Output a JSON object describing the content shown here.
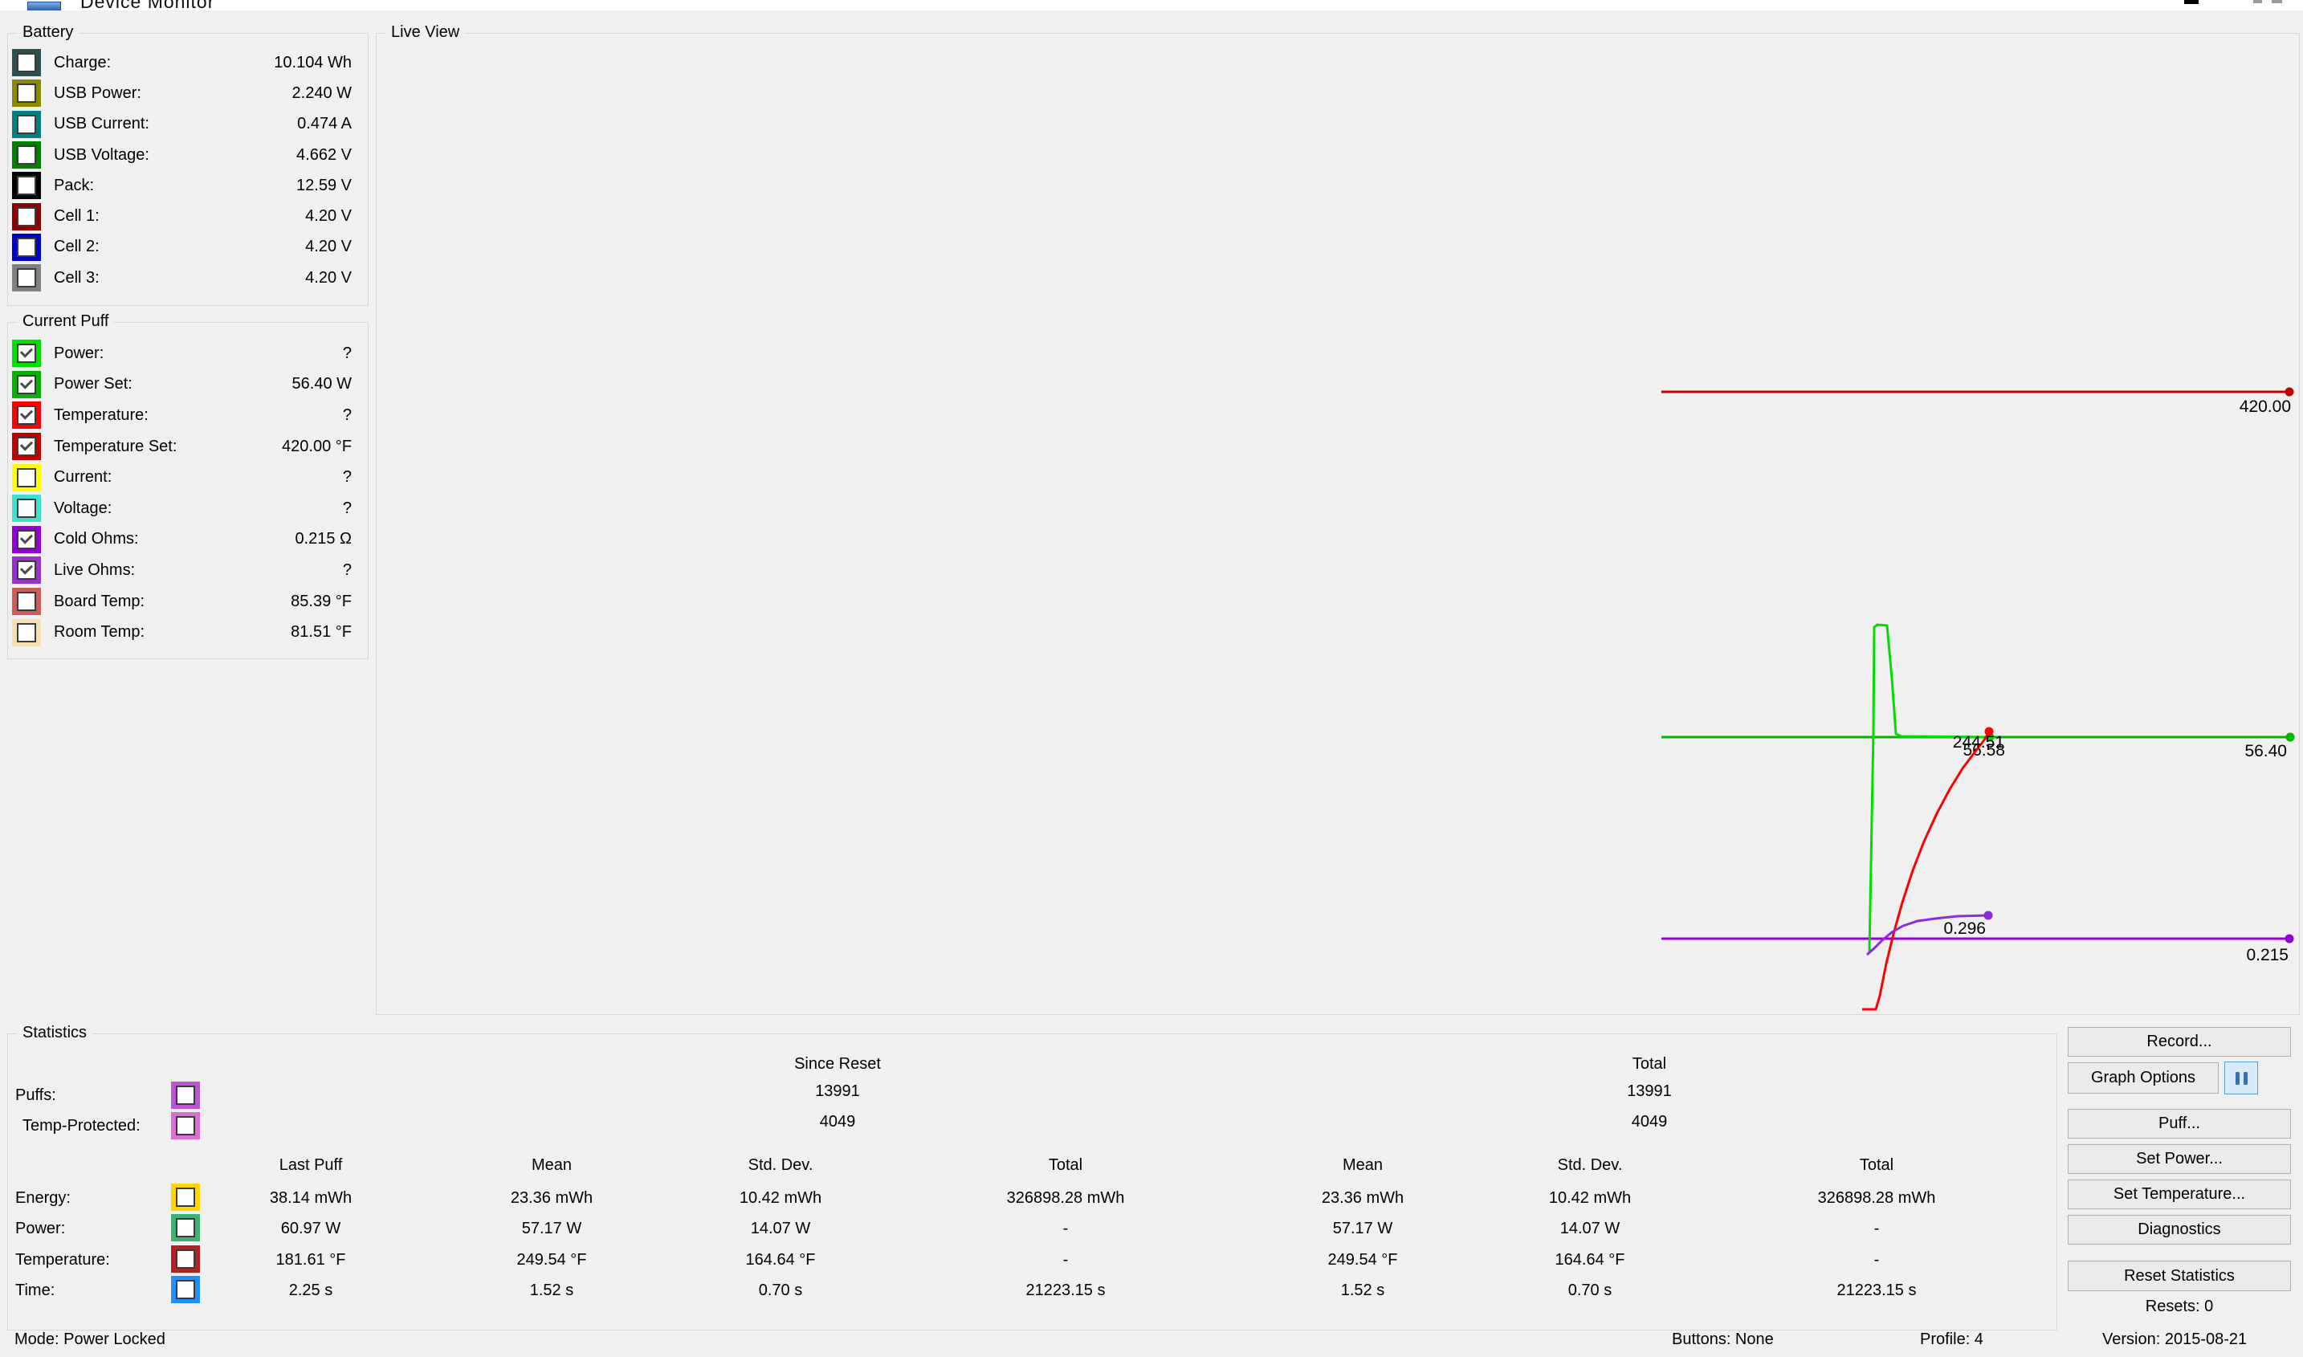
{
  "window": {
    "title": "Device Monitor"
  },
  "battery": {
    "title": "Battery",
    "items": [
      {
        "label": "Charge:",
        "value": "10.104 Wh",
        "color": "#2F4F4F",
        "checked": false
      },
      {
        "label": "USB Power:",
        "value": "2.240 W",
        "color": "#8B8B00",
        "checked": false
      },
      {
        "label": "USB Current:",
        "value": "0.474 A",
        "color": "#008080",
        "checked": false
      },
      {
        "label": "USB Voltage:",
        "value": "4.662 V",
        "color": "#008000",
        "checked": false
      },
      {
        "label": "Pack:",
        "value": "12.59 V",
        "color": "#000000",
        "checked": false
      },
      {
        "label": "Cell 1:",
        "value": "4.20 V",
        "color": "#8B0000",
        "checked": false
      },
      {
        "label": "Cell 2:",
        "value": "4.20 V",
        "color": "#0000CC",
        "checked": false
      },
      {
        "label": "Cell 3:",
        "value": "4.20 V",
        "color": "#808080",
        "checked": false
      }
    ]
  },
  "current_puff": {
    "title": "Current Puff",
    "items": [
      {
        "label": "Power:",
        "value": "?",
        "color": "#00E000",
        "checked": true
      },
      {
        "label": "Power Set:",
        "value": "56.40 W",
        "color": "#00B400",
        "checked": true
      },
      {
        "label": "Temperature:",
        "value": "?",
        "color": "#FF0000",
        "checked": true
      },
      {
        "label": "Temperature Set:",
        "value": "420.00 °F",
        "color": "#BE0000",
        "checked": true
      },
      {
        "label": "Current:",
        "value": "?",
        "color": "#FFFF00",
        "checked": false
      },
      {
        "label": "Voltage:",
        "value": "?",
        "color": "#40E0D0",
        "checked": false
      },
      {
        "label": "Cold Ohms:",
        "value": "0.215 Ω",
        "color": "#9400D3",
        "checked": true
      },
      {
        "label": "Live Ohms:",
        "value": "?",
        "color": "#9932CC",
        "checked": true
      },
      {
        "label": "Board Temp:",
        "value": "85.39 °F",
        "color": "#CD5C5C",
        "checked": false
      },
      {
        "label": "Room Temp:",
        "value": "81.51 °F",
        "color": "#F5DEB3",
        "checked": false
      }
    ]
  },
  "live_view": {
    "title": "Live View",
    "chart_data": {
      "type": "line",
      "grid": false,
      "x_axis": "time (unlabeled)",
      "current_values": {
        "temperature_set": 420.0,
        "power_set": 56.4,
        "cold_ohms": 0.215,
        "power": 56.58,
        "temperature": 244.51,
        "live_ohms": 0.296
      },
      "series": [
        {
          "id": "temperature-set",
          "name": "Temperature Set",
          "color": "#C00000",
          "points": [
            [
              2069,
              488
            ],
            [
              2851,
              488
            ]
          ],
          "dot": [
            2851,
            488
          ],
          "label": "420.00",
          "label_pos": [
            2853,
            513
          ]
        },
        {
          "id": "power-set",
          "name": "Power Set",
          "color": "#00B400",
          "points": [
            [
              2069,
              918
            ],
            [
              2852,
              918
            ]
          ],
          "dot": [
            2852,
            918
          ],
          "label": "56.40",
          "label_pos": [
            2848,
            942
          ]
        },
        {
          "id": "cold-ohms",
          "name": "Cold Ohms",
          "color": "#9400D3",
          "points": [
            [
              2069,
              1169
            ],
            [
              2851,
              1169
            ]
          ],
          "dot": [
            2851,
            1169
          ],
          "label": "0.215",
          "label_pos": [
            2850,
            1196
          ]
        },
        {
          "id": "power",
          "name": "Power",
          "color": "#00DC00",
          "points": [
            [
              2328,
              1187
            ],
            [
              2333,
              910
            ],
            [
              2334,
              781
            ],
            [
              2338,
              778
            ],
            [
              2350,
              779
            ],
            [
              2356,
              845
            ],
            [
              2361,
              914
            ],
            [
              2368,
              917
            ],
            [
              2477,
              918
            ]
          ],
          "dot": [
            2478,
            918
          ],
          "label": "56.58",
          "label_pos": [
            2497,
            941
          ]
        },
        {
          "id": "temperature",
          "name": "Temperature",
          "color": "#FF0000",
          "points": [
            [
              2319,
              1257
            ],
            [
              2336,
              1257
            ],
            [
              2341,
              1240
            ],
            [
              2349,
              1200
            ],
            [
              2358,
              1163
            ],
            [
              2369,
              1124
            ],
            [
              2382,
              1084
            ],
            [
              2396,
              1048
            ],
            [
              2412,
              1013
            ],
            [
              2428,
              983
            ],
            [
              2444,
              957
            ],
            [
              2459,
              937
            ],
            [
              2470,
              923
            ],
            [
              2477,
              912
            ]
          ],
          "dot": [
            2477,
            911
          ],
          "label": "244.51",
          "label_pos": [
            2496,
            931
          ]
        },
        {
          "id": "live-ohms",
          "name": "Live Ohms",
          "color": "#8A2BE2",
          "points": [
            [
              2325,
              1189
            ],
            [
              2334,
              1181
            ],
            [
              2344,
              1171
            ],
            [
              2356,
              1161
            ],
            [
              2370,
              1153
            ],
            [
              2388,
              1147
            ],
            [
              2410,
              1144
            ],
            [
              2438,
              1141
            ],
            [
              2476,
              1140
            ]
          ],
          "dot": [
            2476,
            1140
          ],
          "label": "0.296",
          "label_pos": [
            2473,
            1163
          ]
        }
      ]
    }
  },
  "statistics": {
    "title": "Statistics",
    "group_headers": {
      "since_reset": "Since Reset",
      "total": "Total"
    },
    "counters": [
      {
        "label": "Puffs:",
        "color": "#BA55D3",
        "checked": false,
        "since_reset": "13991",
        "total": "13991"
      },
      {
        "label": "Temp-Protected:",
        "color": "#DA70D6",
        "checked": false,
        "since_reset": "4049",
        "total": "4049"
      }
    ],
    "col_headers": [
      "Last Puff",
      "Mean",
      "Std. Dev.",
      "Total",
      "Mean",
      "Std. Dev.",
      "Total"
    ],
    "rows": [
      {
        "label": "Energy:",
        "color": "#FFD700",
        "checked": false,
        "values": [
          "38.14 mWh",
          "23.36 mWh",
          "10.42 mWh",
          "326898.28 mWh",
          "23.36 mWh",
          "10.42 mWh",
          "326898.28 mWh"
        ]
      },
      {
        "label": "Power:",
        "color": "#3CB371",
        "checked": false,
        "values": [
          "60.97 W",
          "57.17 W",
          "14.07 W",
          "-",
          "57.17 W",
          "14.07 W",
          "-"
        ]
      },
      {
        "label": "Temperature:",
        "color": "#B22222",
        "checked": false,
        "values": [
          "181.61 °F",
          "249.54 °F",
          "164.64 °F",
          "-",
          "249.54 °F",
          "164.64 °F",
          "-"
        ]
      },
      {
        "label": "Time:",
        "color": "#1E90FF",
        "checked": false,
        "values": [
          "2.25 s",
          "1.52 s",
          "0.70 s",
          "21223.15 s",
          "1.52 s",
          "0.70 s",
          "21223.15 s"
        ]
      }
    ]
  },
  "actions": {
    "record": "Record...",
    "graph_options": "Graph Options",
    "pause_icon": "pause",
    "puff": "Puff...",
    "set_power": "Set Power...",
    "set_temperature": "Set Temperature...",
    "diagnostics": "Diagnostics",
    "reset_statistics": "Reset Statistics",
    "resets": "Resets: 0"
  },
  "status_bar": {
    "mode": "Mode: Power Locked",
    "buttons": "Buttons: None",
    "profile": "Profile: 4",
    "version": "Version: 2015-08-21"
  }
}
